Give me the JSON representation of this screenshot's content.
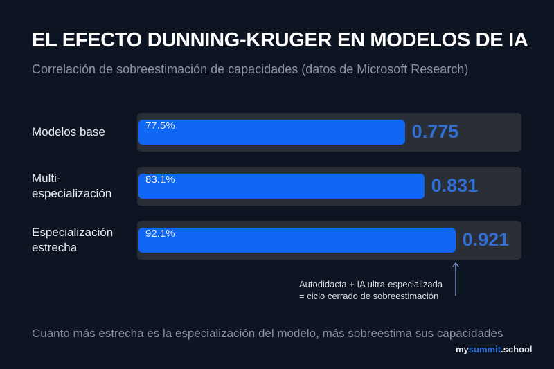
{
  "chart_data": {
    "type": "bar",
    "orientation": "horizontal",
    "title": "EL EFECTO DUNNING-KRUGER EN MODELOS DE IA",
    "subtitle": "Correlación de sobreestimación de capacidades (datos de Microsoft Research)",
    "categories": [
      "Modelos base",
      "Multi-\nespecialización",
      "Especialización\nestrecha"
    ],
    "values": [
      0.775,
      0.831,
      0.921
    ],
    "percent_labels": [
      "77.5%",
      "83.1%",
      "92.1%"
    ],
    "value_labels": [
      "0.775",
      "0.831",
      "0.921"
    ],
    "xlim": [
      0,
      1
    ],
    "grid": false,
    "annotation": {
      "line1": "Autodidacta + IA ultra-especializada",
      "line2": "= ciclo cerrado de sobreestimación",
      "target": "Especialización estrecha"
    },
    "footer": "Cuanto más estrecha es la especialización del modelo, más sobreestima sus capacidades",
    "colors": {
      "bar": "#0f66f2",
      "track": "#2a2e37",
      "value_text": "#2f6fd6",
      "background": "#0e1522"
    }
  },
  "logo": {
    "prefix": "my",
    "brand": "summit",
    "suffix": ".school"
  }
}
